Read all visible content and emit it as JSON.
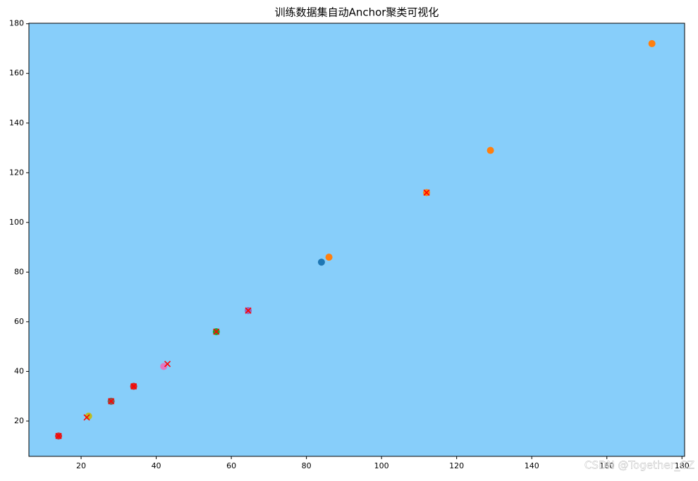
{
  "chart_data": {
    "type": "scatter",
    "title": "训练数据集自动Anchor聚类可视化",
    "background": "#87cefa",
    "xlim": [
      6.1,
      180.7
    ],
    "ylim": [
      5.8,
      180.2
    ],
    "xticks": [
      20,
      40,
      60,
      80,
      100,
      120,
      140,
      160,
      180
    ],
    "yticks": [
      20,
      40,
      60,
      80,
      100,
      120,
      140,
      160,
      180
    ],
    "series": [
      {
        "color": "#d62728",
        "marker": "o",
        "x": [
          14,
          34
        ],
        "y": [
          14,
          34
        ]
      },
      {
        "color": "#bcbd22",
        "marker": "o",
        "x": [
          22
        ],
        "y": [
          22
        ]
      },
      {
        "color": "#8c564b",
        "marker": "o",
        "x": [
          28
        ],
        "y": [
          28
        ]
      },
      {
        "color": "#e377c2",
        "marker": "o",
        "x": [
          42
        ],
        "y": [
          42
        ]
      },
      {
        "color": "#2ca02c",
        "marker": "o",
        "x": [
          56
        ],
        "y": [
          56
        ]
      },
      {
        "color": "#9467bd",
        "marker": "o",
        "x": [
          64.5
        ],
        "y": [
          64.5
        ]
      },
      {
        "color": "#1f77b4",
        "marker": "o",
        "x": [
          84
        ],
        "y": [
          84
        ]
      },
      {
        "color": "#ff7f0e",
        "marker": "o",
        "x": [
          86,
          112,
          129,
          172
        ],
        "y": [
          86,
          112,
          129,
          172
        ]
      },
      {
        "color": "#ff0000",
        "marker": "x",
        "x": [
          14,
          21.5,
          28,
          34,
          43,
          56,
          64.5,
          112
        ],
        "y": [
          14,
          21.5,
          28,
          34,
          43,
          56,
          64.5,
          112
        ]
      }
    ],
    "watermark": "CSDN @Together_CZ"
  }
}
